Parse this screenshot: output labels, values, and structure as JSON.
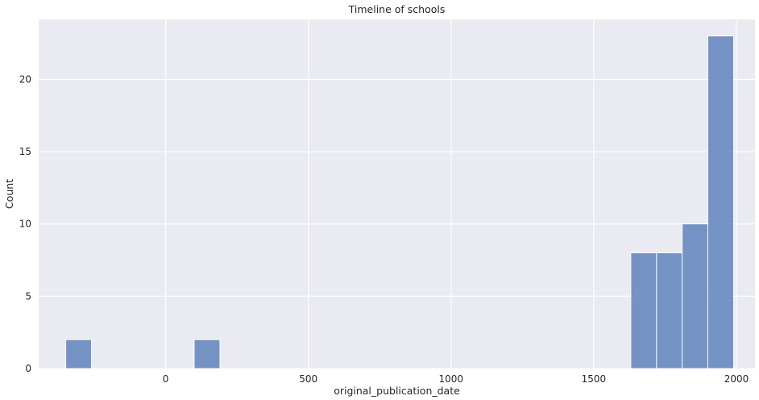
{
  "chart_data": {
    "type": "bar",
    "subtype": "histogram",
    "title": "Timeline of schools",
    "xlabel": "original_publication_date",
    "ylabel": "Count",
    "bins": [
      {
        "start": -350,
        "end": -260,
        "count": 2
      },
      {
        "start": 100,
        "end": 190,
        "count": 2
      },
      {
        "start": 1630,
        "end": 1720,
        "count": 8
      },
      {
        "start": 1720,
        "end": 1810,
        "count": 8
      },
      {
        "start": 1810,
        "end": 1900,
        "count": 10
      },
      {
        "start": 1900,
        "end": 1990,
        "count": 23
      }
    ],
    "xticks": [
      0,
      500,
      1000,
      1500,
      2000
    ],
    "yticks": [
      0,
      5,
      10,
      15,
      20
    ],
    "xlim": [
      -445,
      2065
    ],
    "ylim": [
      0,
      24.15
    ],
    "grid": true,
    "colors": {
      "bar_fill": "#5f82bb",
      "bar_edge": "#ffffff",
      "plot_background": "#eaeaf2",
      "grid": "#ffffff",
      "text": "#262626"
    }
  }
}
